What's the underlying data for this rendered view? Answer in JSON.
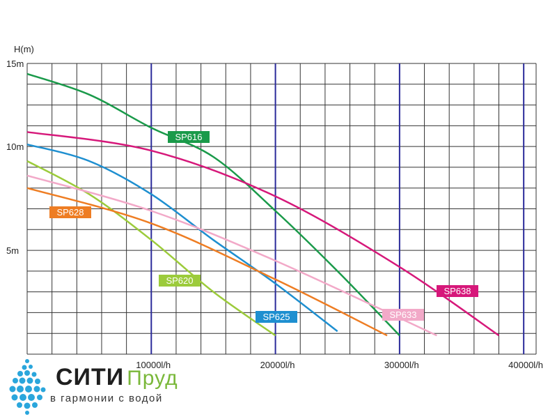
{
  "chart_data": {
    "type": "line",
    "xlabel": "",
    "ylabel": "H(m)",
    "xlim": [
      0,
      41000
    ],
    "ylim": [
      0,
      14
    ],
    "y_ticks": [
      {
        "value": 5,
        "label": "5m"
      },
      {
        "value": 10,
        "label": "10m"
      },
      {
        "value": 15,
        "label": "15m"
      }
    ],
    "x_ticks": [
      {
        "value": 10000,
        "label": "10000l/h"
      },
      {
        "value": 20000,
        "label": "20000l/h"
      },
      {
        "value": 30000,
        "label": "30000l/h"
      },
      {
        "value": 40000,
        "label": "40000l/h"
      }
    ],
    "grid": true,
    "series": [
      {
        "name": "SP616",
        "color": "#1a9a4a",
        "values": [
          [
            0,
            13.5
          ],
          [
            5000,
            12.5
          ],
          [
            10000,
            10.9
          ],
          [
            15000,
            9.5
          ],
          [
            20000,
            6.9
          ],
          [
            25000,
            4.0
          ],
          [
            30000,
            0.9
          ]
        ]
      },
      {
        "name": "SP638",
        "color": "#d6187a",
        "values": [
          [
            0,
            10.7
          ],
          [
            10000,
            9.8
          ],
          [
            20000,
            7.6
          ],
          [
            30000,
            4.2
          ],
          [
            38000,
            0.9
          ]
        ]
      },
      {
        "name": "SP625",
        "color": "#1e8fd0",
        "values": [
          [
            0,
            10.1
          ],
          [
            5000,
            9.3
          ],
          [
            10000,
            7.7
          ],
          [
            15000,
            5.5
          ],
          [
            20000,
            3.4
          ],
          [
            25000,
            1.1
          ]
        ]
      },
      {
        "name": "SP620",
        "color": "#9ccb3b",
        "values": [
          [
            0,
            9.3
          ],
          [
            5000,
            7.7
          ],
          [
            10000,
            5.5
          ],
          [
            15000,
            3.0
          ],
          [
            20000,
            0.9
          ]
        ]
      },
      {
        "name": "SP633",
        "color": "#f2a9c8",
        "values": [
          [
            0,
            8.6
          ],
          [
            10000,
            6.9
          ],
          [
            20000,
            4.5
          ],
          [
            33000,
            0.9
          ]
        ]
      },
      {
        "name": "SP628",
        "color": "#ee7d23",
        "values": [
          [
            0,
            8.0
          ],
          [
            10000,
            6.3
          ],
          [
            20000,
            3.6
          ],
          [
            29000,
            0.9
          ]
        ]
      }
    ]
  },
  "logo": {
    "word1": "СИТИ",
    "word2": "Пруд",
    "tagline": "в гармонии с водой"
  }
}
